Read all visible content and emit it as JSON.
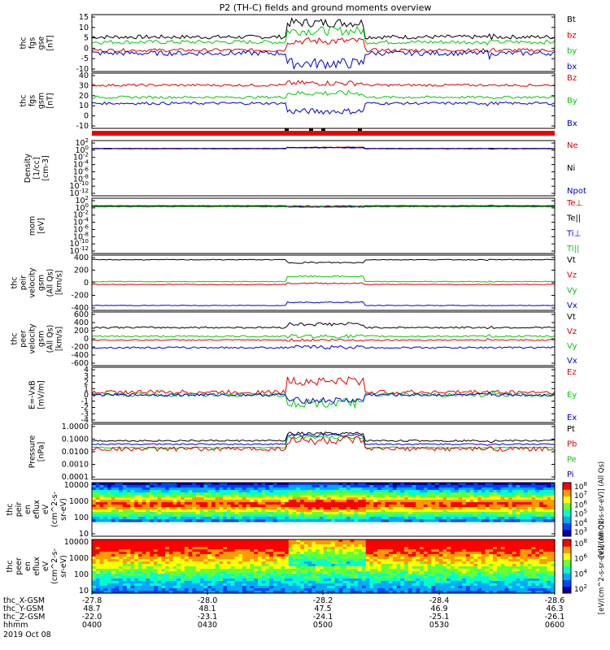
{
  "title": "P2 (TH-C) fields and ground moments overview",
  "colors": {
    "black": "#000000",
    "red": "#dd0000",
    "green": "#00cc00",
    "blue": "#0000cc"
  },
  "chart_data": {
    "type": "line",
    "x_axis": {
      "rows": [
        {
          "label": "thc_X-GSM",
          "values": [
            "-27.8",
            "-28.0",
            "-28.2",
            "-28.4",
            "-28.6"
          ]
        },
        {
          "label": "thc_Y-GSM",
          "values": [
            "48.7",
            "48.1",
            "47.5",
            "46.9",
            "46.3"
          ]
        },
        {
          "label": "thc_Z-GSM",
          "values": [
            "-22.0",
            "-23.1",
            "-24.1",
            "-25.1",
            "-26.1"
          ]
        },
        {
          "label": "hhmm",
          "values": [
            "0400",
            "0430",
            "0500",
            "0530",
            "0600"
          ]
        }
      ],
      "date": "2019 Oct 08"
    },
    "panels": [
      {
        "id": "fgs_gse",
        "ylabel": [
          "thc",
          "fgs",
          "gse",
          "[nT]"
        ],
        "ticks": [
          "15",
          "10",
          "5",
          "0",
          "-5",
          "-10"
        ],
        "legend": [
          {
            "text": "Bt",
            "color": "black"
          },
          {
            "text": "bz",
            "color": "red"
          },
          {
            "text": "by",
            "color": "green"
          },
          {
            "text": "bx",
            "color": "blue"
          }
        ],
        "series": [
          {
            "color": "black",
            "base": 5,
            "active": 12,
            "noise": 1.0
          },
          {
            "color": "green",
            "base": 2.5,
            "active": 8,
            "noise": 1.0
          },
          {
            "color": "red",
            "base": -1.5,
            "active": 3,
            "noise": 0.8
          },
          {
            "color": "blue",
            "base": -3,
            "active": -8,
            "noise": 1.2
          }
        ],
        "ylim": [
          -12,
          16
        ]
      },
      {
        "id": "fgs_gsm",
        "ylabel": [
          "thc",
          "fgs",
          "gsm",
          "[nT]"
        ],
        "ticks": [
          "40",
          "30",
          "20",
          "10",
          "0",
          "-10"
        ],
        "legend": [
          {
            "text": "Bz",
            "color": "red"
          },
          {
            "text": "By",
            "color": "green"
          },
          {
            "text": "Bx",
            "color": "blue"
          }
        ],
        "series": [
          {
            "color": "red",
            "base": 28,
            "active": 30,
            "noise": 1.2
          },
          {
            "color": "green",
            "base": 16,
            "active": 20,
            "noise": 1.2
          },
          {
            "color": "blue",
            "base": 10,
            "active": 2,
            "noise": 1.3
          }
        ],
        "ylim": [
          -15,
          40
        ]
      },
      {
        "id": "density",
        "ylabel": [
          "Density",
          "[1/cc]",
          "[cm-3]"
        ],
        "ticks": [
          "10^2",
          "10^0",
          "10^-2",
          "10^-4",
          "10^-6",
          "10^-8",
          "10^-10",
          "10^-12"
        ],
        "legend": [
          {
            "text": "Ne",
            "color": "red"
          },
          {
            "text": "Ni",
            "color": "black"
          },
          {
            "text": "Npot",
            "color": "blue"
          }
        ],
        "series": [
          {
            "color": "red",
            "base": 0.3,
            "active": 0.6,
            "noise": 0.05
          },
          {
            "color": "black",
            "base": 0.25,
            "active": 0.55,
            "noise": 0.05
          },
          {
            "color": "blue",
            "base": 0.2,
            "active": 0.5,
            "noise": 0.05
          }
        ],
        "ylim": [
          -13,
          2.5
        ]
      },
      {
        "id": "temp",
        "ylabel": [
          "mom",
          "[eV]"
        ],
        "ticks": [
          "10^2",
          "10^0",
          "10^-2",
          "10^-4",
          "10^-6",
          "10^-8",
          "10^-10",
          "10^-12"
        ],
        "legend": [
          {
            "text": "Te⊥",
            "color": "red"
          },
          {
            "text": "Te||",
            "color": "black"
          },
          {
            "text": "Ti⊥",
            "color": "blue"
          },
          {
            "text": "Ti||",
            "color": "green"
          }
        ],
        "series": [
          {
            "color": "black",
            "base": 0.4,
            "active": 0.3,
            "noise": 0.05
          },
          {
            "color": "red",
            "base": 0.3,
            "active": 0.2,
            "noise": 0.05
          },
          {
            "color": "blue",
            "base": 0.2,
            "active": 0.1,
            "noise": 0.05
          },
          {
            "color": "green",
            "base": 0.1,
            "active": 0.0,
            "noise": 0.05
          }
        ],
        "ylim": [
          -13,
          2.5
        ]
      },
      {
        "id": "peir_vel",
        "ylabel": [
          "thc",
          "peir",
          "velocity",
          "gsm",
          "(All Qs)",
          "[km/s]"
        ],
        "ticks": [
          "400",
          "200",
          "0",
          "-200",
          "-400"
        ],
        "legend": [
          {
            "text": "Vt",
            "color": "black"
          },
          {
            "text": "Vz",
            "color": "red"
          },
          {
            "text": "Vy",
            "color": "green"
          },
          {
            "text": "Vx",
            "color": "blue"
          }
        ],
        "series": [
          {
            "color": "black",
            "base": 400,
            "active": 350,
            "noise": 6
          },
          {
            "color": "green",
            "base": 20,
            "active": 110,
            "noise": 6
          },
          {
            "color": "red",
            "base": -30,
            "active": -10,
            "noise": 5
          },
          {
            "color": "blue",
            "base": -395,
            "active": -340,
            "noise": 5
          }
        ],
        "ylim": [
          -480,
          480
        ]
      },
      {
        "id": "peer_vel",
        "ylabel": [
          "thc",
          "peer",
          "velocity",
          "gsm",
          "(All Qs)",
          "[km/s]"
        ],
        "ticks": [
          "600",
          "400",
          "200",
          "0",
          "-200",
          "-400",
          "-600"
        ],
        "legend": [
          {
            "text": "Vt",
            "color": "black"
          },
          {
            "text": "Vz",
            "color": "red"
          },
          {
            "text": "Vy",
            "color": "green"
          },
          {
            "text": "Vx",
            "color": "blue"
          }
        ],
        "series": [
          {
            "color": "black",
            "base": 270,
            "active": 350,
            "noise": 20
          },
          {
            "color": "green",
            "base": 60,
            "active": 60,
            "noise": 20
          },
          {
            "color": "red",
            "base": -30,
            "active": -30,
            "noise": 15
          },
          {
            "color": "blue",
            "base": -210,
            "active": -200,
            "noise": 20
          }
        ],
        "ylim": [
          -640,
          640
        ]
      },
      {
        "id": "efield",
        "ylabel": [
          "E=-VxB",
          "[mV/m]"
        ],
        "ticks": [
          "4",
          "3",
          "2",
          "1",
          "0",
          "-1",
          "-2",
          "-3",
          "-4"
        ],
        "legend": [
          {
            "text": "Ez",
            "color": "red"
          },
          {
            "text": "Ey",
            "color": "green"
          },
          {
            "text": "Ex",
            "color": "blue"
          }
        ],
        "series": [
          {
            "color": "red",
            "base": 0.4,
            "active": 2.0,
            "noise": 0.3
          },
          {
            "color": "green",
            "base": 0.0,
            "active": -1.2,
            "noise": 0.3
          },
          {
            "color": "blue",
            "base": 0.0,
            "active": -0.8,
            "noise": 0.2
          }
        ],
        "ylim": [
          -4,
          4
        ]
      },
      {
        "id": "pressure",
        "ylabel": [
          "Pressure",
          "[nPa]"
        ],
        "ticks": [
          "1.0000",
          "0.1000",
          "0.0100",
          "0.0010",
          "0.0001"
        ],
        "legend": [
          {
            "text": "Pt",
            "color": "black"
          },
          {
            "text": "Pb",
            "color": "red"
          },
          {
            "text": "Pe",
            "color": "green"
          },
          {
            "text": "Pi",
            "color": "blue"
          }
        ],
        "series": [
          {
            "color": "black",
            "base": -1.2,
            "active": -0.7,
            "noise": 0.06
          },
          {
            "color": "blue",
            "base": -1.45,
            "active": -0.8,
            "noise": 0.05
          },
          {
            "color": "green",
            "base": -1.7,
            "active": -0.95,
            "noise": 0.05
          },
          {
            "color": "red",
            "base": -1.8,
            "active": -1.2,
            "noise": 0.15
          }
        ],
        "ylim": [
          -4,
          0
        ]
      },
      {
        "id": "peir_eflux",
        "ylabel": [
          "thc",
          "peir",
          "en",
          "eflux",
          "eV",
          "(cm^2-s-",
          "sr-eV)"
        ],
        "ticks": [
          "10000",
          "1000",
          "100",
          "10"
        ],
        "spectrogram": "ion"
      },
      {
        "id": "peer_eflux",
        "ylabel": [
          "thc",
          "peer",
          "en",
          "eflux",
          "eV",
          "(cm^2-s-",
          "sr-eV)"
        ],
        "ticks": [
          "10000",
          "1000",
          "100",
          "10"
        ],
        "spectrogram": "electron"
      }
    ],
    "colorbars": [
      {
        "ticks": [
          "10^8",
          "10^7",
          "10^6",
          "10^5",
          "10^4",
          "10^3"
        ],
        "label": "[eV/(cm^2-s-sr-eV)] (All Qs)"
      },
      {
        "ticks": [
          "10^8",
          "10^6",
          "10^4",
          "10^2"
        ],
        "label": "[eV/(cm^2-s-sr-eV)] (All Qs)"
      }
    ]
  }
}
